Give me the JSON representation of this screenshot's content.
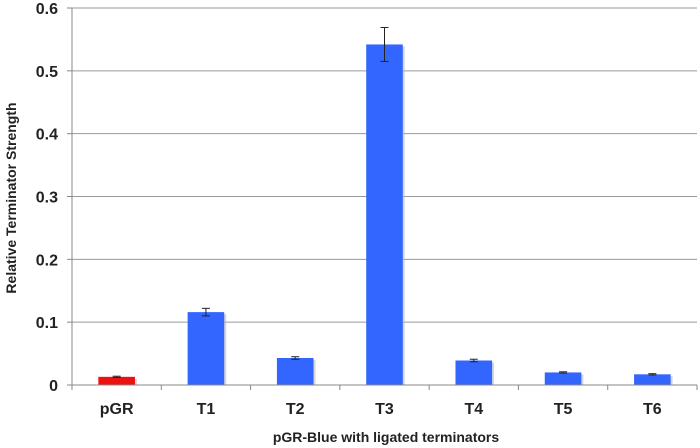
{
  "chart_data": {
    "type": "bar",
    "categories": [
      "pGR",
      "T1",
      "T2",
      "T3",
      "T4",
      "T5",
      "T6"
    ],
    "values": [
      0.013,
      0.116,
      0.043,
      0.542,
      0.039,
      0.02,
      0.017
    ],
    "errors": [
      0.001,
      0.006,
      0.002,
      0.027,
      0.002,
      0.001,
      0.001
    ],
    "bar_colors": [
      "#ee1111",
      "#3366ff",
      "#3366ff",
      "#3366ff",
      "#3366ff",
      "#3366ff",
      "#3366ff"
    ],
    "title": "",
    "xlabel": "pGR-Blue with ligated terminators",
    "ylabel": "Relative Terminator Strength",
    "ylim": [
      0,
      0.6
    ],
    "yticks": [
      0,
      0.1,
      0.2,
      0.3,
      0.4,
      0.5,
      0.6
    ],
    "ytick_labels": [
      "0",
      "0.1",
      "0.2",
      "0.3",
      "0.4",
      "0.5",
      "0.6"
    ],
    "grid": true,
    "legend": "none"
  }
}
